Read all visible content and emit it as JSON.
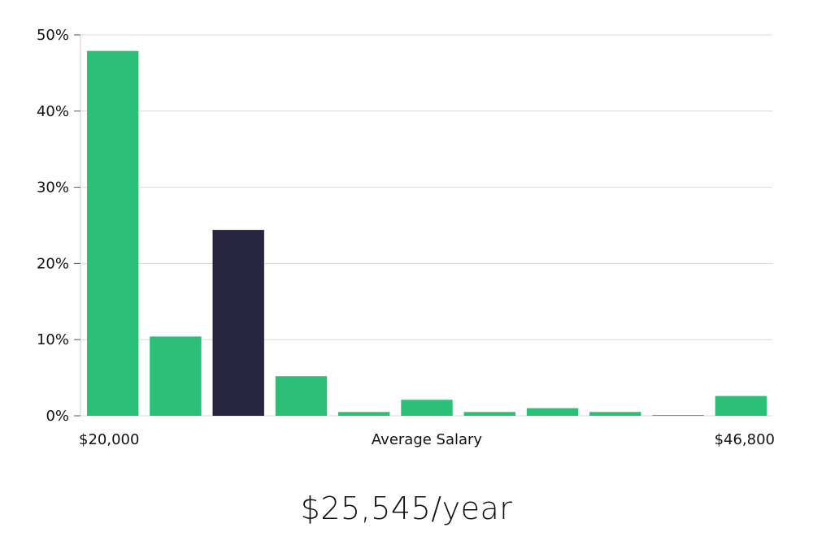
{
  "chart_data": {
    "type": "bar",
    "y_ticks": [
      "0%",
      "10%",
      "20%",
      "30%",
      "40%",
      "50%"
    ],
    "ylim": [
      0,
      50
    ],
    "values": [
      47.9,
      10.4,
      24.4,
      5.2,
      0.5,
      2.1,
      0.5,
      1.0,
      0.5,
      0.1,
      2.6
    ],
    "highlight_index": 2,
    "x_labels": {
      "left": "$20,000",
      "center": "Average Salary",
      "right": "$46,800"
    },
    "grid": true,
    "colors": {
      "bar": "#2bbf77",
      "highlight": "#27253f",
      "grid": "#d9d9d9",
      "axis": "#cfcfcf"
    }
  },
  "summary": {
    "salary": "$25,545/year"
  }
}
